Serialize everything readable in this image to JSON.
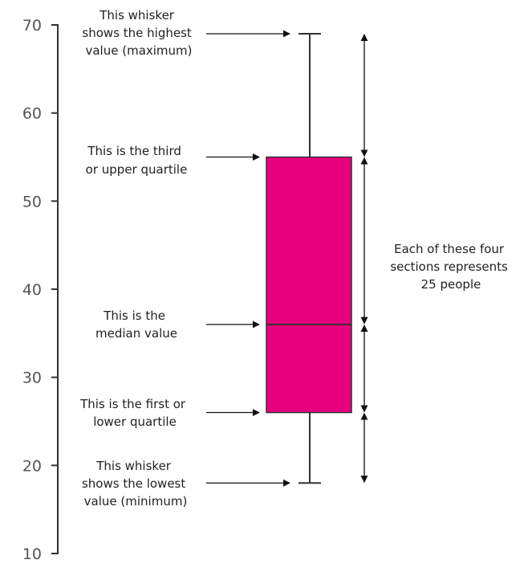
{
  "chart_data": {
    "type": "box",
    "y_ticks": [
      10,
      20,
      30,
      40,
      50,
      60,
      70
    ],
    "ylim": [
      10,
      70
    ],
    "box": {
      "min": 18,
      "q1": 26,
      "median": 36,
      "q3": 55,
      "max": 69,
      "color": "#e6007e"
    },
    "annotations": {
      "max": [
        "This whisker",
        "shows the highest",
        "value (maximum)"
      ],
      "q3": [
        "This is the third",
        "or upper quartile"
      ],
      "median": [
        "This is the",
        "median value"
      ],
      "q1": [
        "This is the first or",
        "lower quartile"
      ],
      "min": [
        "This whisker",
        "shows the lowest",
        "value (minimum)"
      ],
      "sections": [
        "Each of these four",
        "sections represents",
        "25 people"
      ]
    }
  }
}
